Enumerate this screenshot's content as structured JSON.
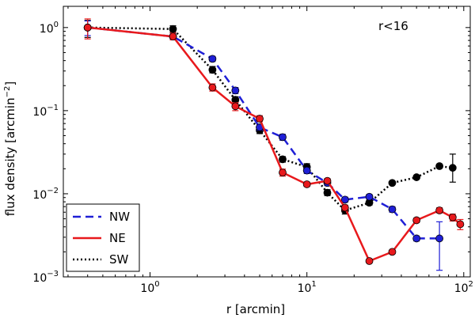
{
  "chart_data": {
    "type": "line",
    "xscale": "log",
    "yscale": "log",
    "xlim": [
      0.28,
      110
    ],
    "ylim": [
      0.001,
      1.8
    ],
    "xlabel": "r [arcmin]",
    "ylabel_main": "flux density [arcmin",
    "ylabel_sup": "−2",
    "ylabel_end": "]",
    "annotation": "r<16",
    "legend_position": "lower-left",
    "x_ticks": [
      {
        "base": "10",
        "exp": "0",
        "value": 1
      },
      {
        "base": "10",
        "exp": "1",
        "value": 10
      },
      {
        "base": "10",
        "exp": "2",
        "value": 100
      }
    ],
    "y_ticks": [
      {
        "base": "10",
        "exp": "−3",
        "value": 0.001
      },
      {
        "base": "10",
        "exp": "−2",
        "value": 0.01
      },
      {
        "base": "10",
        "exp": "−1",
        "value": 0.1
      },
      {
        "base": "10",
        "exp": "0",
        "value": 1
      }
    ],
    "series": [
      {
        "name": "SW",
        "color": "#000000",
        "dash": "2,3",
        "points": [
          {
            "x": 0.4,
            "y": 1.0,
            "lo": 0.76,
            "hi": 1.22
          },
          {
            "x": 1.4,
            "y": 0.96,
            "lo": 0.88,
            "hi": 1.05
          },
          {
            "x": 2.5,
            "y": 0.31,
            "lo": 0.285,
            "hi": 0.34
          },
          {
            "x": 3.5,
            "y": 0.135,
            "lo": 0.124,
            "hi": 0.147
          },
          {
            "x": 5.0,
            "y": 0.058,
            "lo": 0.053,
            "hi": 0.063
          },
          {
            "x": 7.0,
            "y": 0.026,
            "lo": 0.024,
            "hi": 0.028
          },
          {
            "x": 10.0,
            "y": 0.021,
            "lo": 0.019,
            "hi": 0.023
          },
          {
            "x": 13.5,
            "y": 0.0103,
            "lo": 0.0095,
            "hi": 0.0112
          },
          {
            "x": 17.5,
            "y": 0.0063,
            "lo": 0.0057,
            "hi": 0.0069
          },
          {
            "x": 25.0,
            "y": 0.0078,
            "lo": 0.0073,
            "hi": 0.0083
          },
          {
            "x": 35.0,
            "y": 0.0135,
            "lo": 0.013,
            "hi": 0.014
          },
          {
            "x": 50.0,
            "y": 0.0158,
            "lo": 0.0152,
            "hi": 0.0164
          },
          {
            "x": 70.0,
            "y": 0.0215,
            "lo": 0.0205,
            "hi": 0.0225
          },
          {
            "x": 85.0,
            "y": 0.0205,
            "lo": 0.0138,
            "hi": 0.03
          }
        ]
      },
      {
        "name": "NW",
        "color": "#1f1fd6",
        "dash": "10,6",
        "points": [
          {
            "x": 0.4,
            "y": 1.0,
            "lo": 0.8,
            "hi": 1.2
          },
          {
            "x": 1.4,
            "y": 0.78,
            "lo": 0.72,
            "hi": 0.85
          },
          {
            "x": 2.5,
            "y": 0.42,
            "lo": 0.39,
            "hi": 0.45
          },
          {
            "x": 3.5,
            "y": 0.175,
            "lo": 0.16,
            "hi": 0.19
          },
          {
            "x": 5.0,
            "y": 0.063,
            "lo": 0.058,
            "hi": 0.068
          },
          {
            "x": 7.0,
            "y": 0.048,
            "lo": 0.044,
            "hi": 0.052
          },
          {
            "x": 10.0,
            "y": 0.019,
            "lo": 0.0175,
            "hi": 0.0205
          },
          {
            "x": 13.5,
            "y": 0.0135,
            "lo": 0.0125,
            "hi": 0.0145
          },
          {
            "x": 17.5,
            "y": 0.0085,
            "lo": 0.0079,
            "hi": 0.0091
          },
          {
            "x": 25.0,
            "y": 0.0092,
            "lo": 0.0086,
            "hi": 0.0098
          },
          {
            "x": 35.0,
            "y": 0.0065,
            "lo": 0.006,
            "hi": 0.007
          },
          {
            "x": 50.0,
            "y": 0.0029,
            "lo": 0.0027,
            "hi": 0.0031
          },
          {
            "x": 70.0,
            "y": 0.0029,
            "lo": 0.0012,
            "hi": 0.0046
          }
        ]
      },
      {
        "name": "NE",
        "color": "#e8191c",
        "dash": "",
        "points": [
          {
            "x": 0.4,
            "y": 1.0,
            "lo": 0.73,
            "hi": 1.27
          },
          {
            "x": 1.4,
            "y": 0.78,
            "lo": 0.71,
            "hi": 0.86
          },
          {
            "x": 2.5,
            "y": 0.19,
            "lo": 0.172,
            "hi": 0.21
          },
          {
            "x": 3.5,
            "y": 0.113,
            "lo": 0.1,
            "hi": 0.125
          },
          {
            "x": 5.0,
            "y": 0.08,
            "lo": 0.074,
            "hi": 0.087
          },
          {
            "x": 7.0,
            "y": 0.018,
            "lo": 0.0163,
            "hi": 0.0198
          },
          {
            "x": 10.0,
            "y": 0.013,
            "lo": 0.0122,
            "hi": 0.0138
          },
          {
            "x": 13.5,
            "y": 0.0143,
            "lo": 0.0134,
            "hi": 0.0152
          },
          {
            "x": 17.5,
            "y": 0.0068,
            "lo": 0.0063,
            "hi": 0.0073
          },
          {
            "x": 25.0,
            "y": 0.00155,
            "lo": 0.00148,
            "hi": 0.00162
          },
          {
            "x": 35.0,
            "y": 0.002,
            "lo": 0.0019,
            "hi": 0.0021
          },
          {
            "x": 50.0,
            "y": 0.0048,
            "lo": 0.0045,
            "hi": 0.0051
          },
          {
            "x": 70.0,
            "y": 0.0063,
            "lo": 0.0059,
            "hi": 0.0068
          },
          {
            "x": 85.0,
            "y": 0.0052,
            "lo": 0.0047,
            "hi": 0.0057
          },
          {
            "x": 95.0,
            "y": 0.0043,
            "lo": 0.0037,
            "hi": 0.0049
          }
        ]
      }
    ],
    "legend_order": [
      "NW",
      "NE",
      "SW"
    ]
  }
}
